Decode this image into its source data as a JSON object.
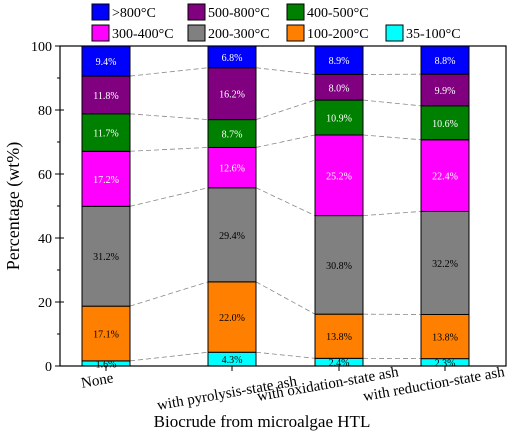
{
  "chart_data": {
    "type": "bar",
    "stacked": true,
    "xlabel": "Biocrude from microalgae HTL",
    "ylabel": "Percentage (wt%)",
    "ylim": [
      0,
      100
    ],
    "yticks": [
      "0",
      "20",
      "40",
      "60",
      "80",
      "100"
    ],
    "grid": false,
    "legend_position": "top",
    "categories": [
      "None",
      "with pyrolysis-state ash",
      "with oxidation-state ash",
      "with reduction-state ash"
    ],
    "series": [
      {
        "name": "35-100°C",
        "color": "#00ffff",
        "values": [
          1.6,
          4.3,
          2.4,
          2.3
        ],
        "labels": [
          "1.6%",
          "4.3%",
          "2.4%",
          "2.3%"
        ]
      },
      {
        "name": "100-200°C",
        "color": "#ff8000",
        "values": [
          17.1,
          22.0,
          13.8,
          13.8
        ],
        "labels": [
          "17.1%",
          "22.0%",
          "13.8%",
          "13.8%"
        ]
      },
      {
        "name": "200-300°C",
        "color": "#808080",
        "values": [
          31.2,
          29.4,
          30.8,
          32.2
        ],
        "labels": [
          "31.2%",
          "29.4%",
          "30.8%",
          "32.2%"
        ]
      },
      {
        "name": "300-400°C",
        "color": "#ff00ff",
        "values": [
          17.2,
          12.6,
          25.2,
          22.4
        ],
        "labels": [
          "17.2%",
          "12.6%",
          "25.2%",
          "22.4%"
        ]
      },
      {
        "name": "400-500°C",
        "color": "#008000",
        "values": [
          11.7,
          8.7,
          10.9,
          10.6
        ],
        "labels": [
          "11.7%",
          "8.7%",
          "10.9%",
          "10.6%"
        ]
      },
      {
        "name": "500-800°C",
        "color": "#800080",
        "values": [
          11.8,
          16.2,
          8.0,
          9.9
        ],
        "labels": [
          "11.8%",
          "16.2%",
          "8.0%",
          "9.9%"
        ]
      },
      {
        "name": ">800°C",
        "color": "#0000ff",
        "values": [
          9.4,
          6.8,
          8.9,
          8.8
        ],
        "labels": [
          "9.4%",
          "6.8%",
          "8.9%",
          "8.8%"
        ]
      }
    ],
    "legend_order": [
      ">800°C",
      "500-800°C",
      "400-500°C",
      "300-400°C",
      "200-300°C",
      "100-200°C",
      "35-100°C"
    ]
  }
}
